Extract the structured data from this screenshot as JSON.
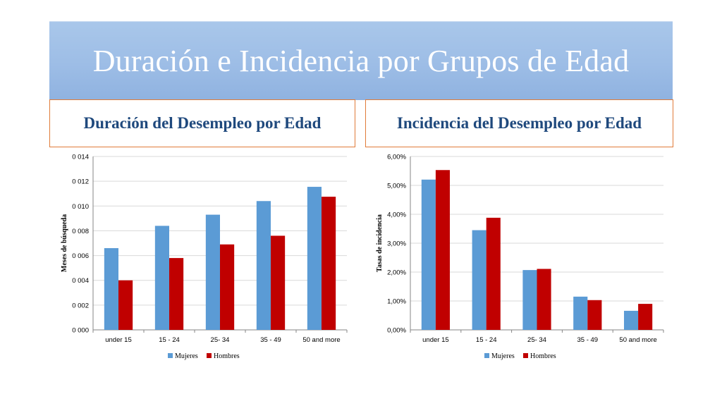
{
  "title": "Duración e Incidencia por Grupos de Edad",
  "subheads": {
    "left": "Duración del Desempleo por Edad",
    "right": "Incidencia del Desempleo por Edad"
  },
  "colors": {
    "mujeres": "#5b9bd5",
    "hombres": "#c00000",
    "gridline": "#d9d9d9",
    "axis": "#868686"
  },
  "chart_data": [
    {
      "type": "bar",
      "categories": [
        "under 15",
        "15 - 24",
        "25- 34",
        "35 - 49",
        "50 and more"
      ],
      "series": [
        {
          "name": "Mujeres",
          "values": [
            0.0066,
            0.0084,
            0.0093,
            0.0104,
            0.01155
          ]
        },
        {
          "name": "Hombres",
          "values": [
            0.004,
            0.0058,
            0.0069,
            0.0076,
            0.01075
          ]
        }
      ],
      "ylabel": "Meses de búsqueda",
      "xlabel": "",
      "ylim": [
        0,
        0.014
      ],
      "yticks": [
        0,
        0.002,
        0.004,
        0.006,
        0.008,
        0.01,
        0.012,
        0.014
      ],
      "ytick_labels": [
        "0 000",
        "0 002",
        "0 004",
        "0 006",
        "0 008",
        "0 010",
        "0 012",
        "0 014"
      ],
      "grid": true,
      "legend": "bottom"
    },
    {
      "type": "bar",
      "categories": [
        "under 15",
        "15 - 24",
        "25- 34",
        "35 - 49",
        "50 and more"
      ],
      "series": [
        {
          "name": "Mujeres",
          "values": [
            5.2,
            3.45,
            2.07,
            1.15,
            0.66
          ]
        },
        {
          "name": "Hombres",
          "values": [
            5.53,
            3.88,
            2.11,
            1.03,
            0.9
          ]
        }
      ],
      "ylabel": "Tasas de incidencia",
      "xlabel": "",
      "ylim": [
        0,
        6
      ],
      "yticks": [
        0,
        1,
        2,
        3,
        4,
        5,
        6
      ],
      "ytick_labels": [
        "0,00%",
        "1,00%",
        "2,00%",
        "3,00%",
        "4,00%",
        "5,00%",
        "6,00%"
      ],
      "grid": true,
      "legend": "bottom"
    }
  ]
}
